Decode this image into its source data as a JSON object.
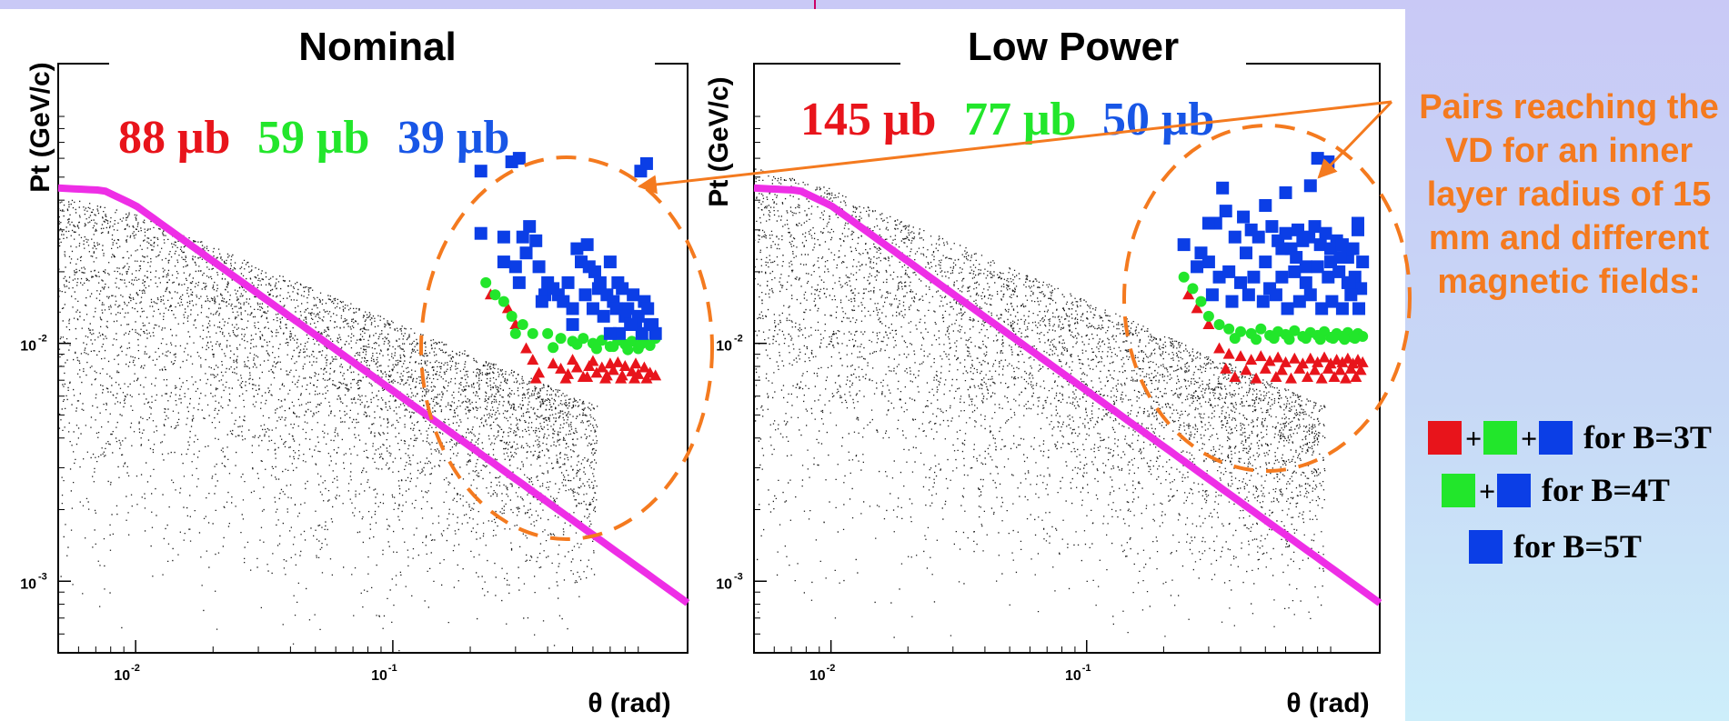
{
  "colors": {
    "red": "#e8141b",
    "green": "#22e62b",
    "blue": "#0b3ee6",
    "blue_text": "#1856e6",
    "magenta": "#ee2ee6",
    "orange": "#f47a1f"
  },
  "note": {
    "lines": [
      "Pairs reaching the",
      "VD for an inner",
      "layer radius of 15",
      "mm and different",
      "magnetic fields:"
    ]
  },
  "legend": {
    "rows": [
      {
        "swatches": [
          "red",
          "green",
          "blue"
        ],
        "label": "for B=3T"
      },
      {
        "swatches": [
          "green",
          "blue"
        ],
        "label": "for B=4T"
      },
      {
        "swatches": [
          "blue"
        ],
        "label": "for B=5T"
      }
    ]
  },
  "chart_data": [
    {
      "type": "scatter",
      "title": "Nominal",
      "xlabel": "θ (rad)",
      "ylabel": "Pt (GeV/c)",
      "x_scale": "log",
      "y_scale": "log",
      "xlim": [
        0.005,
        1.4
      ],
      "ylim": [
        0.0005,
        0.15
      ],
      "x_ticks": [
        {
          "base": "10",
          "exp": "-2"
        },
        {
          "base": "10",
          "exp": "-1"
        }
      ],
      "y_ticks": [
        {
          "base": "10",
          "exp": "-2"
        },
        {
          "base": "10",
          "exp": "-3"
        }
      ],
      "cross_sections": [
        {
          "text": "88 μb",
          "color": "red"
        },
        {
          "text": "59 μb",
          "color": "green"
        },
        {
          "text": "39 μb",
          "color": "blue_text"
        }
      ],
      "cut_curve": {
        "color": "magenta",
        "x": [
          0.005,
          0.0075,
          0.01,
          1.4
        ],
        "y": [
          0.045,
          0.044,
          0.038,
          0.00081
        ]
      },
      "background_band": {
        "x_min": 0.005,
        "x_max": 0.62,
        "upper_edge_x": [
          0.005,
          0.01,
          0.62
        ],
        "upper_edge_y": [
          0.042,
          0.035,
          0.0055
        ]
      },
      "series": [
        {
          "name": "",
          "marker": "square",
          "color": "blue",
          "x": [
            0.22,
            0.29,
            0.31,
            0.22,
            0.27,
            0.32,
            0.34,
            0.27,
            0.3,
            0.36,
            0.33,
            0.37,
            0.31,
            0.4,
            0.44,
            0.39,
            0.46,
            0.5,
            0.54,
            0.58,
            0.52,
            0.57,
            0.61,
            0.63,
            0.48,
            0.42,
            0.38,
            0.56,
            0.6,
            0.64,
            0.68,
            0.66,
            0.72,
            0.75,
            0.7,
            0.78,
            0.82,
            0.86,
            0.9,
            0.95,
            0.74,
            0.8,
            0.84,
            0.88,
            0.93,
            0.98,
            1.0,
            1.05,
            1.02,
            0.76,
            0.84,
            0.7,
            0.5,
            0.92,
            0.97
          ],
          "y": [
            0.053,
            0.058,
            0.06,
            0.029,
            0.028,
            0.028,
            0.031,
            0.022,
            0.021,
            0.027,
            0.024,
            0.021,
            0.018,
            0.018,
            0.016,
            0.016,
            0.015,
            0.014,
            0.022,
            0.021,
            0.025,
            0.026,
            0.02,
            0.017,
            0.018,
            0.017,
            0.015,
            0.016,
            0.014,
            0.018,
            0.016,
            0.013,
            0.015,
            0.018,
            0.022,
            0.017,
            0.014,
            0.016,
            0.013,
            0.015,
            0.014,
            0.013,
            0.012,
            0.012,
            0.011,
            0.014,
            0.012,
            0.011,
            0.012,
            0.011,
            0.012,
            0.011,
            0.012,
            0.053,
            0.057
          ]
        },
        {
          "name": "",
          "marker": "circle",
          "color": "green",
          "x": [
            0.23,
            0.27,
            0.29,
            0.3,
            0.32,
            0.35,
            0.4,
            0.45,
            0.5,
            0.55,
            0.6,
            0.65,
            0.7,
            0.75,
            0.8,
            0.85,
            0.9,
            0.95,
            1.0,
            1.05,
            0.25,
            0.42,
            0.52,
            0.62,
            0.72,
            0.82,
            0.92
          ],
          "y": [
            0.018,
            0.015,
            0.013,
            0.011,
            0.012,
            0.011,
            0.011,
            0.0105,
            0.0102,
            0.0105,
            0.01,
            0.0103,
            0.0097,
            0.0103,
            0.0099,
            0.0102,
            0.0095,
            0.0101,
            0.0098,
            0.0105,
            0.016,
            0.0096,
            0.0099,
            0.0095,
            0.0097,
            0.0094,
            0.0099
          ]
        },
        {
          "name": "",
          "marker": "triangle",
          "color": "red",
          "x": [
            0.24,
            0.28,
            0.3,
            0.33,
            0.35,
            0.37,
            0.42,
            0.45,
            0.48,
            0.5,
            0.52,
            0.55,
            0.58,
            0.6,
            0.62,
            0.65,
            0.68,
            0.7,
            0.72,
            0.75,
            0.78,
            0.8,
            0.85,
            0.88,
            0.9,
            0.95,
            1.0,
            1.05,
            0.36,
            0.47,
            0.57,
            0.67,
            0.77,
            0.87,
            0.97
          ],
          "y": [
            0.016,
            0.014,
            0.012,
            0.0095,
            0.0085,
            0.0075,
            0.0082,
            0.0078,
            0.0074,
            0.0085,
            0.0079,
            0.0072,
            0.008,
            0.0084,
            0.0075,
            0.0079,
            0.0073,
            0.0082,
            0.0077,
            0.0083,
            0.0073,
            0.008,
            0.0076,
            0.0082,
            0.0074,
            0.0079,
            0.0075,
            0.0073,
            0.0071,
            0.0071,
            0.0072,
            0.0071,
            0.0071,
            0.0071,
            0.0071
          ]
        }
      ]
    },
    {
      "type": "scatter",
      "title": "Low Power",
      "xlabel": "θ (rad)",
      "ylabel": "Pt (GeV/c)",
      "x_scale": "log",
      "y_scale": "log",
      "xlim": [
        0.005,
        1.4
      ],
      "ylim": [
        0.0005,
        0.15
      ],
      "x_ticks": [
        {
          "base": "10",
          "exp": "-2"
        },
        {
          "base": "10",
          "exp": "-1"
        }
      ],
      "y_ticks": [
        {
          "base": "10",
          "exp": "-2"
        },
        {
          "base": "10",
          "exp": "-3"
        }
      ],
      "cross_sections": [
        {
          "text": "145 μb",
          "color": "red"
        },
        {
          "text": "77 μb",
          "color": "green"
        },
        {
          "text": "50 μb",
          "color": "blue_text"
        }
      ],
      "cut_curve": {
        "color": "magenta",
        "x": [
          0.005,
          0.0075,
          0.01,
          1.4
        ],
        "y": [
          0.045,
          0.044,
          0.038,
          0.00081
        ]
      },
      "background_band": {
        "x_min": 0.005,
        "x_max": 0.85,
        "upper_edge_x": [
          0.005,
          0.01,
          0.85
        ],
        "upper_edge_y": [
          0.055,
          0.045,
          0.0055
        ]
      },
      "series": [
        {
          "name": "",
          "marker": "square",
          "color": "blue",
          "x": [
            0.24,
            0.28,
            0.3,
            0.27,
            0.32,
            0.35,
            0.38,
            0.41,
            0.44,
            0.47,
            0.5,
            0.53,
            0.56,
            0.6,
            0.63,
            0.67,
            0.7,
            0.74,
            0.78,
            0.82,
            0.86,
            0.9,
            0.95,
            1.0,
            1.05,
            1.1,
            1.15,
            1.2,
            0.33,
            0.36,
            0.4,
            0.45,
            0.52,
            0.58,
            0.65,
            0.72,
            0.8,
            0.88,
            0.97,
            1.05,
            1.12,
            1.18,
            0.31,
            0.37,
            0.43,
            0.49,
            0.55,
            0.61,
            0.68,
            0.75,
            0.83,
            0.91,
            1.0,
            1.08,
            1.16,
            0.8,
            0.88,
            0.34,
            0.6,
            0.75,
            1.15,
            0.3,
            0.42,
            0.5,
            0.58,
            0.66,
            0.72,
            0.9,
            0.98,
            1.06
          ],
          "y": [
            0.026,
            0.024,
            0.022,
            0.021,
            0.032,
            0.036,
            0.028,
            0.034,
            0.03,
            0.028,
            0.038,
            0.031,
            0.027,
            0.029,
            0.025,
            0.03,
            0.027,
            0.028,
            0.031,
            0.026,
            0.029,
            0.025,
            0.027,
            0.026,
            0.023,
            0.025,
            0.03,
            0.022,
            0.019,
            0.02,
            0.018,
            0.019,
            0.017,
            0.019,
            0.02,
            0.018,
            0.021,
            0.019,
            0.02,
            0.018,
            0.019,
            0.017,
            0.016,
            0.015,
            0.016,
            0.015,
            0.016,
            0.014,
            0.015,
            0.016,
            0.014,
            0.015,
            0.014,
            0.016,
            0.014,
            0.06,
            0.058,
            0.045,
            0.043,
            0.046,
            0.032,
            0.032,
            0.024,
            0.022,
            0.025,
            0.023,
            0.021,
            0.022,
            0.023,
            0.018
          ]
        },
        {
          "name": "",
          "marker": "circle",
          "color": "green",
          "x": [
            0.24,
            0.26,
            0.28,
            0.3,
            0.33,
            0.36,
            0.4,
            0.44,
            0.48,
            0.52,
            0.56,
            0.6,
            0.65,
            0.7,
            0.75,
            0.8,
            0.85,
            0.9,
            0.95,
            1.0,
            1.05,
            1.1,
            1.15,
            1.2,
            0.38,
            0.46,
            0.54,
            0.62,
            0.72,
            0.82,
            0.92,
            1.02,
            1.12
          ],
          "y": [
            0.019,
            0.017,
            0.015,
            0.013,
            0.012,
            0.0115,
            0.0112,
            0.011,
            0.0115,
            0.0108,
            0.0112,
            0.0109,
            0.0113,
            0.0107,
            0.0111,
            0.0108,
            0.0112,
            0.0106,
            0.011,
            0.0107,
            0.0111,
            0.0106,
            0.011,
            0.0107,
            0.0105,
            0.0104,
            0.0105,
            0.0104,
            0.0105,
            0.0104,
            0.0105,
            0.0104,
            0.0105
          ]
        },
        {
          "name": "",
          "marker": "triangle",
          "color": "red",
          "x": [
            0.25,
            0.27,
            0.3,
            0.33,
            0.36,
            0.4,
            0.44,
            0.48,
            0.52,
            0.56,
            0.6,
            0.65,
            0.7,
            0.75,
            0.8,
            0.85,
            0.9,
            0.95,
            1.0,
            1.05,
            1.1,
            1.15,
            1.2,
            0.35,
            0.42,
            0.5,
            0.58,
            0.68,
            0.78,
            0.88,
            0.98,
            1.08,
            1.18,
            0.38,
            0.46,
            0.55,
            0.63,
            0.73,
            0.83,
            0.93,
            1.03,
            1.13
          ],
          "y": [
            0.016,
            0.014,
            0.012,
            0.0095,
            0.009,
            0.0088,
            0.0085,
            0.0088,
            0.0084,
            0.0087,
            0.0083,
            0.0086,
            0.0082,
            0.0086,
            0.0083,
            0.0087,
            0.0082,
            0.0085,
            0.0083,
            0.0086,
            0.0082,
            0.0085,
            0.0083,
            0.0078,
            0.0077,
            0.0078,
            0.0077,
            0.0078,
            0.0077,
            0.0078,
            0.0077,
            0.0078,
            0.0077,
            0.0072,
            0.0071,
            0.0072,
            0.0071,
            0.0072,
            0.0071,
            0.0072,
            0.0071,
            0.0072
          ]
        }
      ]
    }
  ]
}
